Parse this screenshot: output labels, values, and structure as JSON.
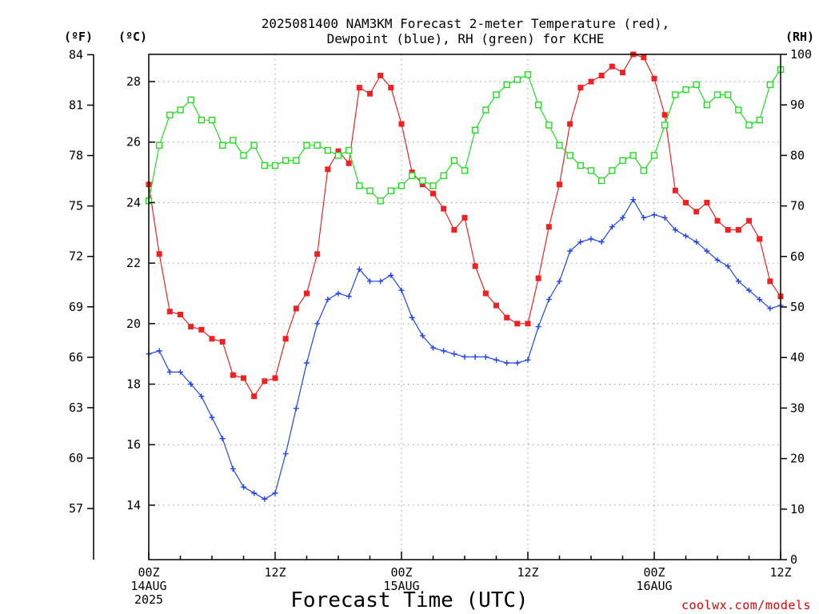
{
  "chart_data": {
    "type": "line",
    "title_line1": "2025081400 NAM3KM Forecast 2-meter Temperature (red),",
    "title_line2": "Dewpoint (blue), RH (green) for KCHE",
    "xlabel": "Forecast Time (UTC)",
    "credit": "coolwx.com/models",
    "units": {
      "f": "(ºF)",
      "c": "(ºC)",
      "rh": "(RH)"
    },
    "x_hours_range": [
      0,
      60
    ],
    "y_celsius_range": [
      12.2,
      28.9
    ],
    "y_rh_range": [
      0,
      100
    ],
    "x_ticks": [
      {
        "hour": 0,
        "line1": "00Z",
        "line2": "14AUG",
        "line3": "2025"
      },
      {
        "hour": 12,
        "line1": "12Z",
        "line2": "",
        "line3": ""
      },
      {
        "hour": 24,
        "line1": "00Z",
        "line2": "15AUG",
        "line3": ""
      },
      {
        "hour": 36,
        "line1": "12Z",
        "line2": "",
        "line3": ""
      },
      {
        "hour": 48,
        "line1": "00Z",
        "line2": "16AUG",
        "line3": ""
      },
      {
        "hour": 60,
        "line1": "12Z",
        "line2": "",
        "line3": ""
      }
    ],
    "y_celsius_ticks": [
      "14",
      "16",
      "18",
      "20",
      "22",
      "24",
      "26",
      "28"
    ],
    "y_fahrenheit_ticks": [
      "57",
      "60",
      "63",
      "66",
      "69",
      "72",
      "75",
      "78",
      "81",
      "84"
    ],
    "y_rh_ticks": [
      "0",
      "10",
      "20",
      "30",
      "40",
      "50",
      "60",
      "70",
      "80",
      "90",
      "100"
    ],
    "grid": true,
    "series": [
      {
        "name": "Temperature",
        "color": "#ee2222",
        "marker": "filled-square",
        "axis": "celsius",
        "x": [
          0,
          1,
          2,
          3,
          4,
          5,
          6,
          7,
          8,
          9,
          10,
          11,
          12,
          13,
          14,
          15,
          16,
          17,
          18,
          19,
          20,
          21,
          22,
          23,
          24,
          25,
          26,
          27,
          28,
          29,
          30,
          31,
          32,
          33,
          34,
          35,
          36,
          37,
          38,
          39,
          40,
          41,
          42,
          43,
          44,
          45,
          46,
          47,
          48,
          49,
          50,
          51,
          52,
          53,
          54,
          55,
          56,
          57,
          58,
          59,
          60
        ],
        "values": [
          24.6,
          22.3,
          20.4,
          20.3,
          19.9,
          19.8,
          19.5,
          19.4,
          18.3,
          18.2,
          17.6,
          18.1,
          18.2,
          19.5,
          20.5,
          21.0,
          22.3,
          25.1,
          25.7,
          25.3,
          27.8,
          27.6,
          28.2,
          27.8,
          26.6,
          25.0,
          24.6,
          24.3,
          23.8,
          23.1,
          23.5,
          21.9,
          21.0,
          20.6,
          20.2,
          20.0,
          20.0,
          21.5,
          23.2,
          24.6,
          26.6,
          27.8,
          28.0,
          28.2,
          28.5,
          28.3,
          28.9,
          28.8,
          28.1,
          26.9,
          24.4,
          24.0,
          23.7,
          24.0,
          23.4,
          23.1,
          23.1,
          23.4,
          22.8,
          21.4,
          20.9
        ]
      },
      {
        "name": "Dewpoint",
        "color": "#2244ee",
        "marker": "plus",
        "axis": "celsius",
        "x": [
          0,
          1,
          2,
          3,
          4,
          5,
          6,
          7,
          8,
          9,
          10,
          11,
          12,
          13,
          14,
          15,
          16,
          17,
          18,
          19,
          20,
          21,
          22,
          23,
          24,
          25,
          26,
          27,
          28,
          29,
          30,
          31,
          32,
          33,
          34,
          35,
          36,
          37,
          38,
          39,
          40,
          41,
          42,
          43,
          44,
          45,
          46,
          47,
          48,
          49,
          50,
          51,
          52,
          53,
          54,
          55,
          56,
          57,
          58,
          59,
          60
        ],
        "values": [
          19.0,
          19.1,
          18.4,
          18.4,
          18.0,
          17.6,
          16.9,
          16.2,
          15.2,
          14.6,
          14.4,
          14.2,
          14.4,
          15.7,
          17.2,
          18.7,
          20.0,
          20.8,
          21.0,
          20.9,
          21.8,
          21.4,
          21.4,
          21.6,
          21.1,
          20.2,
          19.6,
          19.2,
          19.1,
          19.0,
          18.9,
          18.9,
          18.9,
          18.8,
          18.7,
          18.7,
          18.8,
          19.9,
          20.8,
          21.4,
          22.4,
          22.7,
          22.8,
          22.7,
          23.2,
          23.5,
          24.1,
          23.5,
          23.6,
          23.5,
          23.1,
          22.9,
          22.7,
          22.4,
          22.1,
          21.9,
          21.4,
          21.1,
          20.8,
          20.5,
          20.6
        ]
      },
      {
        "name": "RH",
        "color": "#22dd22",
        "marker": "open-square",
        "axis": "rh",
        "x": [
          0,
          1,
          2,
          3,
          4,
          5,
          6,
          7,
          8,
          9,
          10,
          11,
          12,
          13,
          14,
          15,
          16,
          17,
          18,
          19,
          20,
          21,
          22,
          23,
          24,
          25,
          26,
          27,
          28,
          29,
          30,
          31,
          32,
          33,
          34,
          35,
          36,
          37,
          38,
          39,
          40,
          41,
          42,
          43,
          44,
          45,
          46,
          47,
          48,
          49,
          50,
          51,
          52,
          53,
          54,
          55,
          56,
          57,
          58,
          59,
          60
        ],
        "values": [
          71,
          82,
          88,
          89,
          91,
          87,
          87,
          82,
          83,
          80,
          82,
          78,
          78,
          79,
          79,
          82,
          82,
          81,
          80,
          81,
          74,
          73,
          71,
          73,
          74,
          76,
          75,
          74,
          76,
          79,
          77,
          85,
          89,
          92,
          94,
          95,
          96,
          90,
          86,
          82,
          80,
          78,
          77,
          75,
          77,
          79,
          80,
          77,
          80,
          86,
          92,
          93,
          94,
          90,
          92,
          92,
          89,
          86,
          87,
          94,
          97
        ]
      }
    ]
  }
}
